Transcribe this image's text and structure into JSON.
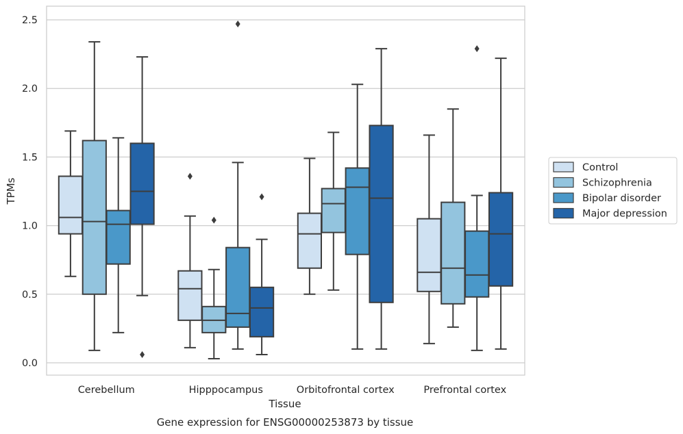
{
  "chart_data": {
    "type": "boxplot",
    "xlabel": "Tissue",
    "ylabel": "TPMs",
    "caption": "Gene expression for ENSG00000253873 by tissue",
    "ylim": [
      -0.09,
      2.6
    ],
    "yticks": [
      0.0,
      0.5,
      1.0,
      1.5,
      2.0,
      2.5
    ],
    "ytick_labels": [
      "0.0",
      "0.5",
      "1.0",
      "1.5",
      "2.0",
      "2.5"
    ],
    "grid": "horizontal",
    "legend_position": "right",
    "categories": [
      "Cerebellum",
      "Hipppocampus",
      "Orbitofrontal cortex",
      "Prefrontal cortex"
    ],
    "series": [
      {
        "name": "Control",
        "color": "#cfe1f2",
        "boxes": [
          {
            "whisker_low": 0.63,
            "q1": 0.94,
            "median": 1.06,
            "q3": 1.36,
            "whisker_high": 1.69,
            "outliers": []
          },
          {
            "whisker_low": 0.11,
            "q1": 0.31,
            "median": 0.54,
            "q3": 0.67,
            "whisker_high": 1.07,
            "outliers": [
              1.36
            ]
          },
          {
            "whisker_low": 0.5,
            "q1": 0.69,
            "median": 0.94,
            "q3": 1.09,
            "whisker_high": 1.49,
            "outliers": []
          },
          {
            "whisker_low": 0.14,
            "q1": 0.52,
            "median": 0.66,
            "q3": 1.05,
            "whisker_high": 1.66,
            "outliers": []
          }
        ]
      },
      {
        "name": "Schizophrenia",
        "color": "#93c4de",
        "boxes": [
          {
            "whisker_low": 0.09,
            "q1": 0.5,
            "median": 1.03,
            "q3": 1.62,
            "whisker_high": 2.34,
            "outliers": []
          },
          {
            "whisker_low": 0.03,
            "q1": 0.22,
            "median": 0.31,
            "q3": 0.41,
            "whisker_high": 0.68,
            "outliers": [
              1.04
            ]
          },
          {
            "whisker_low": 0.53,
            "q1": 0.95,
            "median": 1.16,
            "q3": 1.27,
            "whisker_high": 1.68,
            "outliers": []
          },
          {
            "whisker_low": 0.26,
            "q1": 0.43,
            "median": 0.69,
            "q3": 1.17,
            "whisker_high": 1.85,
            "outliers": []
          }
        ]
      },
      {
        "name": "Bipolar disorder",
        "color": "#4a98c9",
        "boxes": [
          {
            "whisker_low": 0.22,
            "q1": 0.72,
            "median": 1.01,
            "q3": 1.11,
            "whisker_high": 1.64,
            "outliers": []
          },
          {
            "whisker_low": 0.1,
            "q1": 0.26,
            "median": 0.36,
            "q3": 0.84,
            "whisker_high": 1.46,
            "outliers": [
              2.47
            ]
          },
          {
            "whisker_low": 0.1,
            "q1": 0.79,
            "median": 1.28,
            "q3": 1.42,
            "whisker_high": 2.03,
            "outliers": []
          },
          {
            "whisker_low": 0.09,
            "q1": 0.48,
            "median": 0.64,
            "q3": 0.96,
            "whisker_high": 1.22,
            "outliers": [
              2.29
            ]
          }
        ]
      },
      {
        "name": "Major depression",
        "color": "#2464a8",
        "boxes": [
          {
            "whisker_low": 0.49,
            "q1": 1.01,
            "median": 1.25,
            "q3": 1.6,
            "whisker_high": 2.23,
            "outliers": [
              0.06
            ]
          },
          {
            "whisker_low": 0.06,
            "q1": 0.19,
            "median": 0.4,
            "q3": 0.55,
            "whisker_high": 0.9,
            "outliers": [
              1.21
            ]
          },
          {
            "whisker_low": 0.1,
            "q1": 0.44,
            "median": 1.2,
            "q3": 1.73,
            "whisker_high": 2.29,
            "outliers": []
          },
          {
            "whisker_low": 0.1,
            "q1": 0.56,
            "median": 0.94,
            "q3": 1.24,
            "whisker_high": 2.22,
            "outliers": []
          }
        ]
      }
    ]
  }
}
